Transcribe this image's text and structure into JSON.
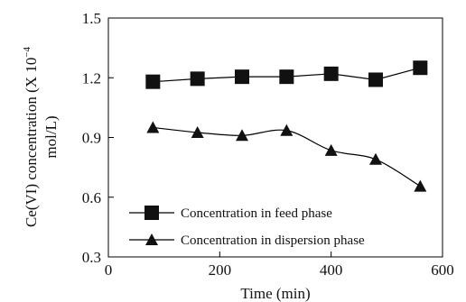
{
  "chart_data": {
    "type": "line",
    "xlabel": "Time (min)",
    "ylabel_line1": "Ce(VI) concentration (X 10",
    "ylabel_exponent": "−4",
    "ylabel_line2": "mol/L)",
    "xlim": [
      0,
      600
    ],
    "ylim": [
      0.3,
      1.5
    ],
    "x_ticks": [
      0,
      200,
      400,
      600
    ],
    "x_tick_labels": [
      "0",
      "200",
      "400",
      "600"
    ],
    "y_ticks": [
      0.3,
      0.6,
      0.9,
      1.2,
      1.5
    ],
    "y_tick_labels": [
      "0.3",
      "0.6",
      "0.9",
      "1.2",
      "1.5"
    ],
    "grid": false,
    "legend_position": "bottom-left",
    "series": [
      {
        "name": "Concentration in feed phase",
        "marker": "square",
        "color": "#000000",
        "x": [
          80,
          160,
          240,
          320,
          400,
          480,
          560
        ],
        "y": [
          1.18,
          1.195,
          1.205,
          1.205,
          1.22,
          1.19,
          1.25
        ]
      },
      {
        "name": "Concentration in dispersion phase",
        "marker": "triangle",
        "color": "#000000",
        "x": [
          80,
          160,
          240,
          320,
          400,
          480,
          560
        ],
        "y": [
          0.95,
          0.925,
          0.91,
          0.935,
          0.835,
          0.79,
          0.655
        ]
      }
    ]
  }
}
